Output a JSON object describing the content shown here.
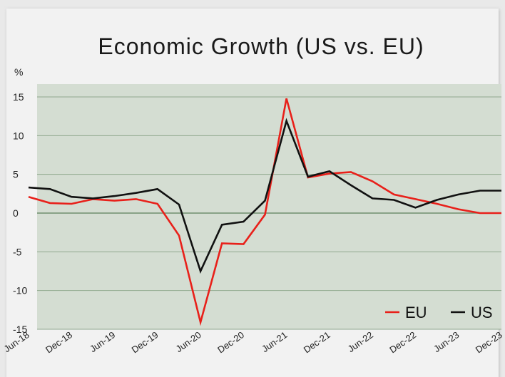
{
  "chart_data": {
    "type": "line",
    "title": "Economic Growth (US vs. EU)",
    "ylabel": "%",
    "xlabel": "",
    "ylim": [
      -15,
      15
    ],
    "y_ticks": [
      15,
      10,
      5,
      0,
      -5,
      -10,
      -15
    ],
    "x_tick_labels": [
      "Jun-18",
      "Dec-18",
      "Jun-19",
      "Dec-19",
      "Jun-20",
      "Dec-20",
      "Jun-21",
      "Dec-21",
      "Jun-22",
      "Dec-22",
      "Jun-23",
      "Dec-23"
    ],
    "x": [
      "Jun-18",
      "Sep-18",
      "Dec-18",
      "Mar-19",
      "Jun-19",
      "Sep-19",
      "Dec-19",
      "Mar-20",
      "Jun-20",
      "Sep-20",
      "Dec-20",
      "Mar-21",
      "Jun-21",
      "Sep-21",
      "Dec-21",
      "Mar-22",
      "Jun-22",
      "Sep-22",
      "Dec-22",
      "Mar-23",
      "Jun-23",
      "Sep-23",
      "Dec-23"
    ],
    "grid": true,
    "legend_position": "bottom-right",
    "series": [
      {
        "name": "EU",
        "color": "#e8201a",
        "values": [
          2.1,
          1.3,
          1.2,
          1.8,
          1.6,
          1.8,
          1.2,
          -2.9,
          -14.1,
          -3.9,
          -4.0,
          -0.2,
          14.8,
          4.6,
          5.1,
          5.3,
          4.1,
          2.4,
          1.8,
          1.2,
          0.5,
          0.0,
          0.0
        ]
      },
      {
        "name": "US",
        "color": "#111111",
        "values": [
          3.3,
          3.1,
          2.1,
          1.9,
          2.2,
          2.6,
          3.1,
          1.1,
          -7.5,
          -1.5,
          -1.1,
          1.6,
          11.9,
          4.7,
          5.4,
          3.6,
          1.9,
          1.7,
          0.7,
          1.7,
          2.4,
          2.9,
          2.9
        ]
      }
    ]
  }
}
